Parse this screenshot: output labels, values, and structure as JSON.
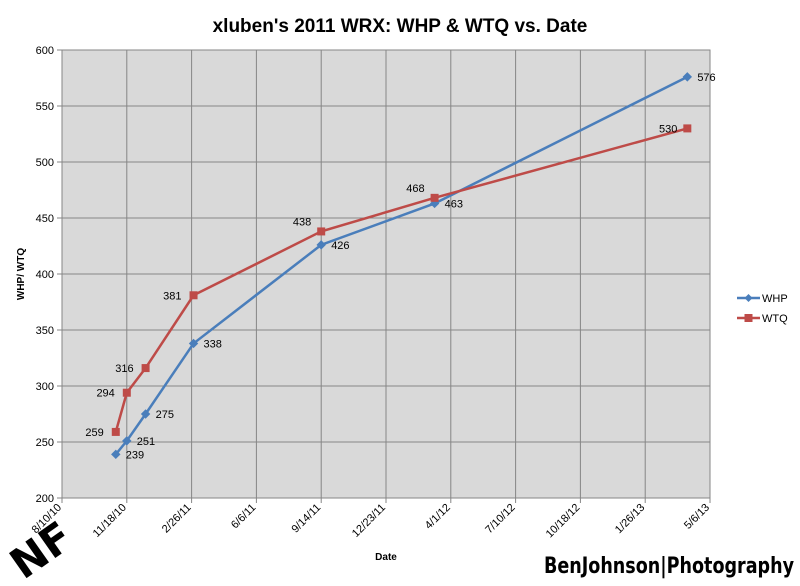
{
  "chart_data": {
    "type": "line",
    "title": "xluben's 2011 WRX: WHP & WTQ vs. Date",
    "xlabel": "Date",
    "ylabel": "WHP/ WTQ",
    "x_ticks": [
      "8/10/10",
      "11/18/10",
      "2/26/11",
      "6/6/11",
      "9/14/11",
      "12/23/11",
      "4/1/12",
      "7/10/12",
      "10/18/12",
      "1/26/13",
      "5/6/13"
    ],
    "xlim": [
      "8/10/10",
      "5/6/13"
    ],
    "y_ticks": [
      200,
      250,
      300,
      350,
      400,
      450,
      500,
      550,
      600
    ],
    "ylim": [
      200,
      600
    ],
    "grid": true,
    "legend_position": "right",
    "series": [
      {
        "name": "WHP",
        "color": "#4a7ebb",
        "marker": "diamond",
        "x": [
          "11/1/10",
          "11/18/10",
          "12/17/10",
          "3/1/11",
          "9/14/11",
          "3/7/12",
          "4/1/13"
        ],
        "values": [
          239,
          251,
          275,
          338,
          426,
          463,
          576
        ],
        "labels": [
          "239",
          "251",
          "275",
          "338",
          "426",
          "463",
          "576"
        ]
      },
      {
        "name": "WTQ",
        "color": "#be4b48",
        "marker": "square",
        "x": [
          "11/1/10",
          "11/18/10",
          "12/17/10",
          "3/1/11",
          "9/14/11",
          "3/7/12",
          "4/1/13"
        ],
        "values": [
          259,
          294,
          316,
          381,
          438,
          468,
          530
        ],
        "labels": [
          "259",
          "294",
          "316",
          "381",
          "438",
          "468",
          "530"
        ]
      }
    ]
  },
  "watermark": {
    "logo_text": "NF",
    "credit_text": "BenJohnson|Photography"
  }
}
